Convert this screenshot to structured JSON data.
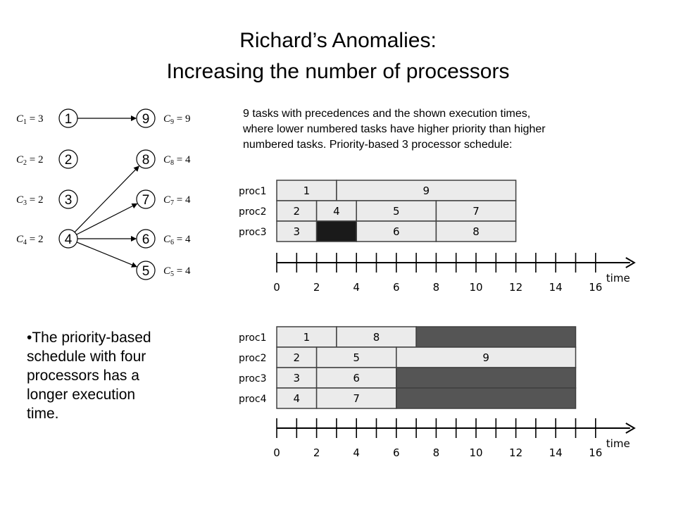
{
  "title": {
    "line1": "Richard’s Anomalies:",
    "line2": "Increasing the number of processors"
  },
  "description": {
    "line1": "9 tasks with precedences and the shown execution times,",
    "line2": "where lower numbered tasks have higher priority than higher",
    "line3": "numbered tasks. Priority-based 3 processor schedule:"
  },
  "bullet": {
    "marker": "•",
    "line1": "The priority-based",
    "line2": "schedule with four",
    "line3": "processors has a",
    "line4": "longer execution",
    "line5": "time."
  },
  "tasks": [
    {
      "id": "1",
      "cost_symbol": "C",
      "cost_sub": "1",
      "cost_value": "3"
    },
    {
      "id": "2",
      "cost_symbol": "C",
      "cost_sub": "2",
      "cost_value": "2"
    },
    {
      "id": "3",
      "cost_symbol": "C",
      "cost_sub": "3",
      "cost_value": "2"
    },
    {
      "id": "4",
      "cost_symbol": "C",
      "cost_sub": "4",
      "cost_value": "2"
    },
    {
      "id": "9",
      "cost_symbol": "C",
      "cost_sub": "9",
      "cost_value": "9"
    },
    {
      "id": "8",
      "cost_symbol": "C",
      "cost_sub": "8",
      "cost_value": "4"
    },
    {
      "id": "7",
      "cost_symbol": "C",
      "cost_sub": "7",
      "cost_value": "4"
    },
    {
      "id": "6",
      "cost_symbol": "C",
      "cost_sub": "6",
      "cost_value": "4"
    },
    {
      "id": "5",
      "cost_symbol": "C",
      "cost_sub": "5",
      "cost_value": "4"
    }
  ],
  "edges": [
    {
      "from": "1",
      "to": "9"
    },
    {
      "from": "4",
      "to": "8"
    },
    {
      "from": "4",
      "to": "7"
    },
    {
      "from": "4",
      "to": "6"
    },
    {
      "from": "4",
      "to": "5"
    }
  ],
  "colors": {
    "task_fill": "#ebebeb",
    "idle_fill": "#555555",
    "idle_dark_fill": "#1a1a1a",
    "border": "#404040"
  },
  "schedules": [
    {
      "processors": [
        "proc1",
        "proc2",
        "proc3"
      ],
      "time_label": "time",
      "ticks": [
        "0",
        "2",
        "4",
        "6",
        "8",
        "10",
        "12",
        "14",
        "16"
      ],
      "blocks": [
        {
          "row": 0,
          "start": 0,
          "end": 3,
          "label": "1",
          "kind": "task"
        },
        {
          "row": 0,
          "start": 3,
          "end": 12,
          "label": "9",
          "kind": "task"
        },
        {
          "row": 1,
          "start": 0,
          "end": 2,
          "label": "2",
          "kind": "task"
        },
        {
          "row": 1,
          "start": 2,
          "end": 4,
          "label": "4",
          "kind": "task"
        },
        {
          "row": 1,
          "start": 4,
          "end": 8,
          "label": "5",
          "kind": "task"
        },
        {
          "row": 1,
          "start": 8,
          "end": 12,
          "label": "7",
          "kind": "task"
        },
        {
          "row": 2,
          "start": 0,
          "end": 2,
          "label": "3",
          "kind": "task"
        },
        {
          "row": 2,
          "start": 2,
          "end": 4,
          "label": "",
          "kind": "idle-dark"
        },
        {
          "row": 2,
          "start": 4,
          "end": 8,
          "label": "6",
          "kind": "task"
        },
        {
          "row": 2,
          "start": 8,
          "end": 12,
          "label": "8",
          "kind": "task"
        }
      ]
    },
    {
      "processors": [
        "proc1",
        "proc2",
        "proc3",
        "proc4"
      ],
      "time_label": "time",
      "ticks": [
        "0",
        "2",
        "4",
        "6",
        "8",
        "10",
        "12",
        "14",
        "16"
      ],
      "blocks": [
        {
          "row": 0,
          "start": 0,
          "end": 3,
          "label": "1",
          "kind": "task"
        },
        {
          "row": 0,
          "start": 3,
          "end": 7,
          "label": "8",
          "kind": "task"
        },
        {
          "row": 0,
          "start": 7,
          "end": 15,
          "label": "",
          "kind": "idle"
        },
        {
          "row": 1,
          "start": 0,
          "end": 2,
          "label": "2",
          "kind": "task"
        },
        {
          "row": 1,
          "start": 2,
          "end": 6,
          "label": "5",
          "kind": "task"
        },
        {
          "row": 1,
          "start": 6,
          "end": 15,
          "label": "9",
          "kind": "task"
        },
        {
          "row": 2,
          "start": 0,
          "end": 2,
          "label": "3",
          "kind": "task"
        },
        {
          "row": 2,
          "start": 2,
          "end": 6,
          "label": "6",
          "kind": "task"
        },
        {
          "row": 2,
          "start": 6,
          "end": 15,
          "label": "",
          "kind": "idle"
        },
        {
          "row": 3,
          "start": 0,
          "end": 2,
          "label": "4",
          "kind": "task"
        },
        {
          "row": 3,
          "start": 2,
          "end": 6,
          "label": "7",
          "kind": "task"
        },
        {
          "row": 3,
          "start": 6,
          "end": 15,
          "label": "",
          "kind": "idle"
        }
      ]
    }
  ]
}
